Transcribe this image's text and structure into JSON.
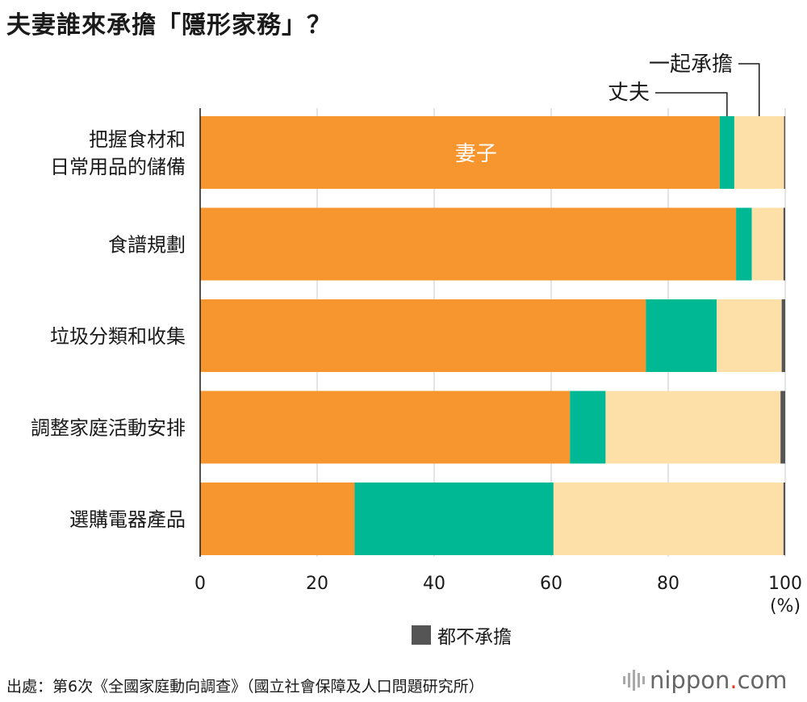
{
  "title": "夫妻誰來承擔「隱形家務」？",
  "source": "出處：第6次《全國家庭動向調查》（國立社會保障及人口問題研究所）",
  "logo": {
    "text": "nippon",
    "dot": ".",
    "suffix": "com"
  },
  "chart_data": {
    "type": "bar",
    "orientation": "horizontal",
    "stacked": true,
    "categories": [
      "把握食材和\n日常用品的儲備",
      "食譜規劃",
      "垃圾分類和收集",
      "調整家庭活動安排",
      "選購電器產品"
    ],
    "series": [
      {
        "name": "妻子",
        "color": "#f7962f",
        "values": [
          88.8,
          91.6,
          76.2,
          63.2,
          26.4
        ]
      },
      {
        "name": "丈夫",
        "color": "#00b894",
        "values": [
          2.5,
          2.7,
          12.1,
          6.1,
          34.0
        ]
      },
      {
        "name": "一起承擔",
        "color": "#fde0a8",
        "values": [
          8.5,
          5.4,
          11.1,
          29.9,
          39.3
        ]
      },
      {
        "name": "都不承擔",
        "color": "#555555",
        "values": [
          0.2,
          0.3,
          0.6,
          0.8,
          0.3
        ]
      }
    ],
    "xlim": [
      0,
      100
    ],
    "xticks": [
      0,
      20,
      40,
      60,
      80,
      100
    ],
    "xunit": "(%)",
    "grid": true,
    "legend": "bottom-center"
  }
}
